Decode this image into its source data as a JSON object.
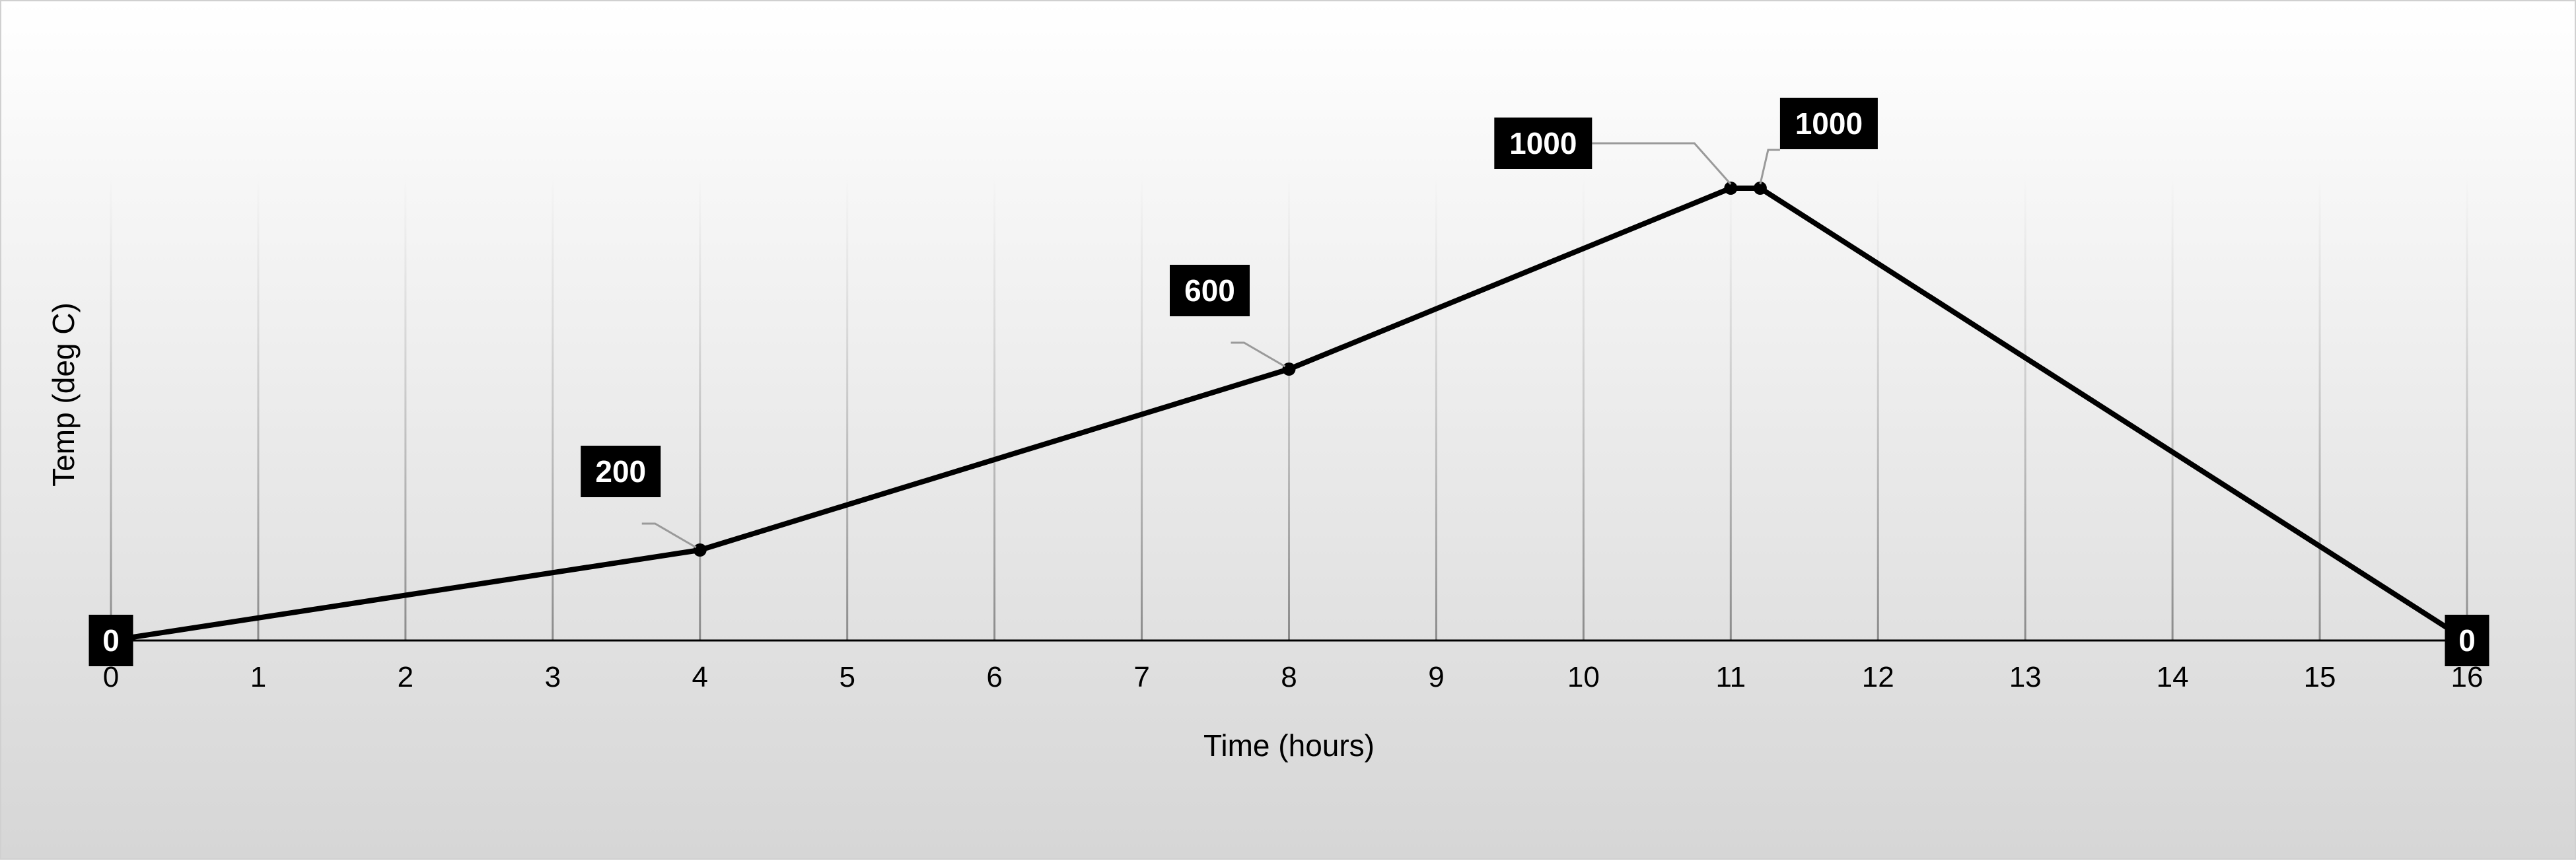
{
  "chart_data": {
    "type": "line",
    "title": "",
    "xlabel": "Time (hours)",
    "ylabel": "Temp (deg C)",
    "xlim": [
      0,
      16
    ],
    "ylim": [
      0,
      1000
    ],
    "x_ticks": [
      "0",
      "1",
      "2",
      "3",
      "4",
      "5",
      "6",
      "7",
      "8",
      "9",
      "10",
      "11",
      "12",
      "13",
      "14",
      "15",
      "16"
    ],
    "grid": "vertical",
    "legend": "none",
    "series": [
      {
        "color": "#000000",
        "points": [
          {
            "x": 0,
            "y": 0,
            "label": "0"
          },
          {
            "x": 4,
            "y": 200,
            "label": "200"
          },
          {
            "x": 8,
            "y": 600,
            "label": "600"
          },
          {
            "x": 11,
            "y": 1000,
            "label": "1000"
          },
          {
            "x": 11.2,
            "y": 1000,
            "label": "1000"
          },
          {
            "x": 16,
            "y": 0,
            "label": "0"
          }
        ]
      }
    ]
  }
}
